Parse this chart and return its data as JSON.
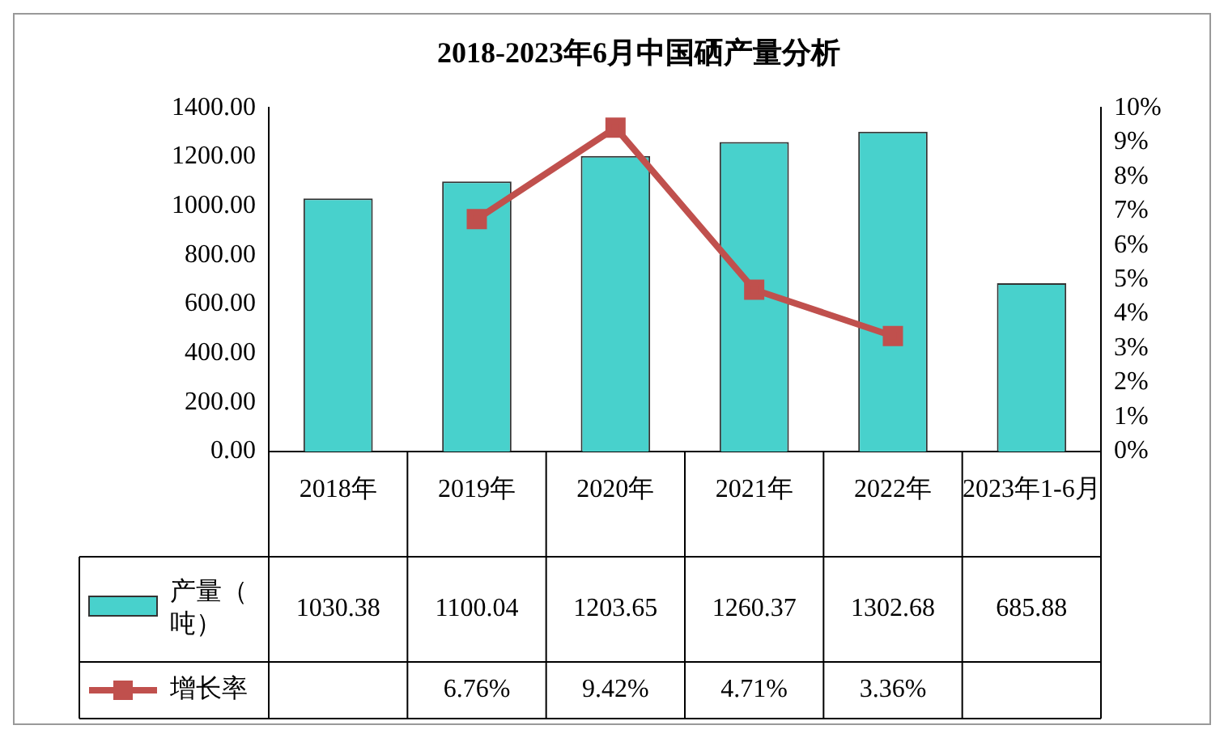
{
  "chart_data": {
    "type": "bar",
    "title": "2018-2023年6月中国硒产量分析",
    "categories": [
      "2018年",
      "2019年",
      "2020年",
      "2021年",
      "2022年",
      "2023年1-6月"
    ],
    "series": [
      {
        "name": "产量（吨）",
        "color": "#48d1cc",
        "values": [
          1030.38,
          1100.04,
          1203.65,
          1260.37,
          1302.68,
          685.88
        ],
        "value_labels": [
          "1030.38",
          "1100.04",
          "1203.65",
          "1260.37",
          "1302.68",
          "685.88"
        ]
      },
      {
        "name": "增长率",
        "type": "line",
        "axis": "y2",
        "color": "#c0504d",
        "marker": "square",
        "values": [
          null,
          6.76,
          9.42,
          4.71,
          3.36,
          null
        ],
        "value_labels": [
          null,
          "6.76%",
          "9.42%",
          "4.71%",
          "3.36%",
          null
        ]
      }
    ],
    "ylim": [
      0,
      1400
    ],
    "yticks": [
      {
        "value": 0,
        "label": "0.00"
      },
      {
        "value": 200,
        "label": "200.00"
      },
      {
        "value": 400,
        "label": "400.00"
      },
      {
        "value": 600,
        "label": "600.00"
      },
      {
        "value": 800,
        "label": "800.00"
      },
      {
        "value": 1000,
        "label": "1000.00"
      },
      {
        "value": 1200,
        "label": "1200.00"
      },
      {
        "value": 1400,
        "label": "1400.00"
      }
    ],
    "y2lim": [
      0,
      10
    ],
    "y2ticks": [
      {
        "value": 0,
        "label": "0%"
      },
      {
        "value": 1,
        "label": "1%"
      },
      {
        "value": 2,
        "label": "2%"
      },
      {
        "value": 3,
        "label": "3%"
      },
      {
        "value": 4,
        "label": "4%"
      },
      {
        "value": 5,
        "label": "5%"
      },
      {
        "value": 6,
        "label": "6%"
      },
      {
        "value": 7,
        "label": "7%"
      },
      {
        "value": 8,
        "label": "8%"
      },
      {
        "value": 9,
        "label": "9%"
      },
      {
        "value": 10,
        "label": "10%"
      }
    ],
    "grid": false,
    "legend": "bottom left"
  }
}
